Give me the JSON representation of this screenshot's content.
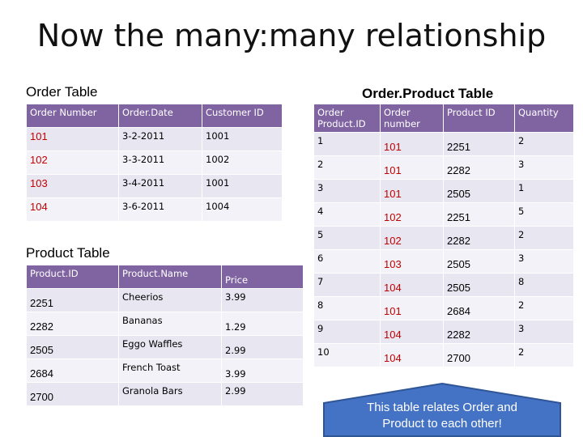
{
  "title": "Now the many:many relationship",
  "order_table": {
    "label": "Order Table",
    "headers": [
      "Order Number",
      "Order.Date",
      "Customer ID"
    ],
    "rows": [
      [
        "101",
        "3-2-2011",
        "1001"
      ],
      [
        "102",
        "3-3-2011",
        "1002"
      ],
      [
        "103",
        "3-4-2011",
        "1001"
      ],
      [
        "104",
        "3-6-2011",
        "1004"
      ]
    ]
  },
  "product_table": {
    "label": "Product Table",
    "headers": [
      "Product.ID",
      "Product.Name",
      "Price"
    ],
    "rows": [
      [
        "2251",
        "Cheerios",
        "3.99"
      ],
      [
        "2282",
        "Bananas",
        "1.29"
      ],
      [
        "2505",
        "Eggo Waffles",
        "2.99"
      ],
      [
        "2684",
        "French Toast",
        "3.99"
      ],
      [
        "2700",
        "Granola Bars",
        "2.99"
      ]
    ]
  },
  "order_product_table": {
    "label": "Order.Product Table",
    "headers": [
      "Order Product.ID",
      "Order number",
      "Product ID",
      "Quantity"
    ],
    "rows": [
      [
        "1",
        "101",
        "2251",
        "2"
      ],
      [
        "2",
        "101",
        "2282",
        "3"
      ],
      [
        "3",
        "101",
        "2505",
        "1"
      ],
      [
        "4",
        "102",
        "2251",
        "5"
      ],
      [
        "5",
        "102",
        "2282",
        "2"
      ],
      [
        "6",
        "103",
        "2505",
        "3"
      ],
      [
        "7",
        "104",
        "2505",
        "8"
      ],
      [
        "8",
        "101",
        "2684",
        "2"
      ],
      [
        "9",
        "104",
        "2282",
        "3"
      ],
      [
        "10",
        "104",
        "2700",
        "2"
      ]
    ]
  },
  "callout": {
    "text": "This table relates Order and Product to each other!",
    "fill": "#4472c4",
    "stroke": "#2f5597"
  },
  "colors": {
    "header_bg": "#8064a2",
    "row_bg": "#e8e6f1",
    "row_alt_bg": "#f3f2f8",
    "key_red": "#c00000"
  }
}
